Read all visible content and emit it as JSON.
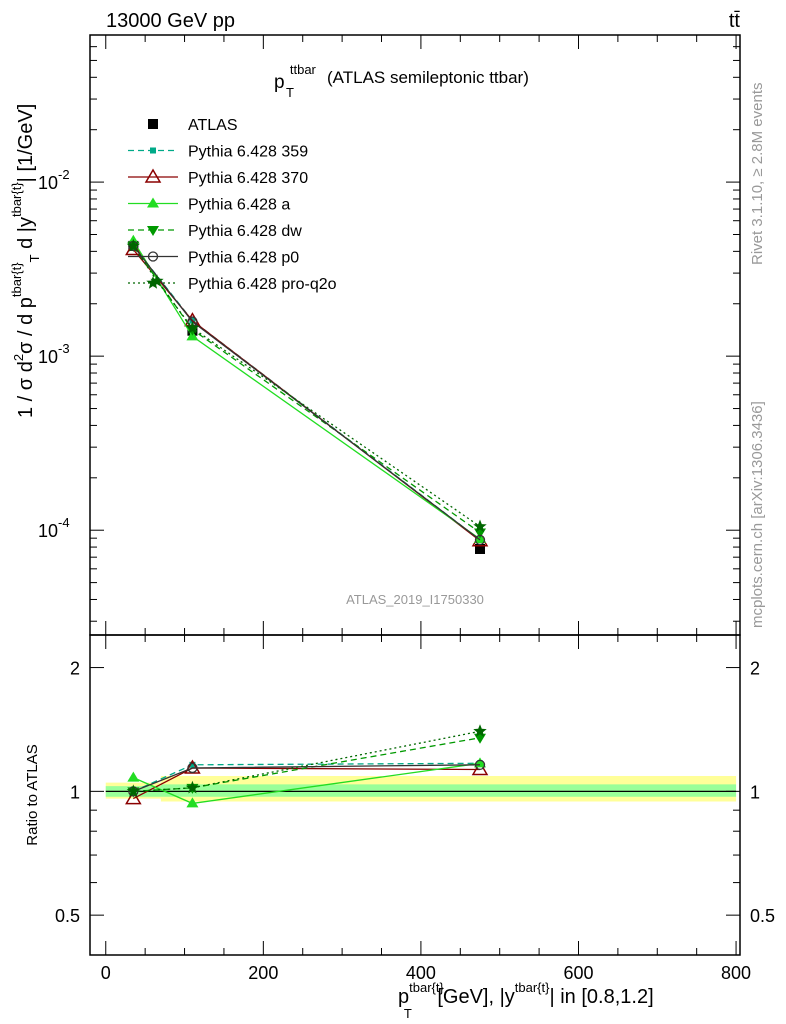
{
  "header": {
    "energy_label": "13000 GeV pp",
    "process_label": "tt̄"
  },
  "side_labels": {
    "rivet": "Rivet 3.1.10, ≥ 2.8M events",
    "source": "mcplots.cern.ch [arXiv:1306.3436]"
  },
  "chart_data": [
    {
      "type": "line",
      "panel": "main",
      "title": "p_T^ttbar (ATLAS semileptonic ttbar)",
      "title_parts": {
        "base": "p",
        "sup": "ttbar",
        "sub": "T",
        "rest": "(ATLAS semileptonic ttbar)"
      },
      "analysis_label": "ATLAS_2019_I1750330",
      "ylabel": "1 / σ d²σ / d p^{tbar{t}}_T d |y^{tbar{t}}| [1/GeV]",
      "ylabel_parts": {
        "a": "1 / σ d",
        "a_sup": "2",
        "b": "σ / d p",
        "b_sup": "tbar{t}",
        "b_sub": "T",
        "c": " d |y",
        "c_sup": "tbar{t}",
        "d": "| [1/GeV]"
      },
      "yscale": "log",
      "ylim": [
        2.5e-05,
        0.07
      ],
      "xlim": [
        -20,
        805
      ],
      "y_tick_labels": [
        {
          "value": 0.01,
          "base": "10",
          "exp": "-2"
        },
        {
          "value": 0.001,
          "base": "10",
          "exp": "-3"
        },
        {
          "value": 0.0001,
          "base": "10",
          "exp": "-4"
        }
      ],
      "legend_placement": "top-left",
      "series": [
        {
          "name": "ATLAS",
          "marker": "square",
          "line": "none",
          "color": "#000000",
          "x": [
            35,
            110,
            475
          ],
          "y": [
            0.0043,
            0.0014,
            7.8e-05
          ]
        },
        {
          "name": "Pythia 6.428 359",
          "marker": "small-square",
          "line": "dashed",
          "color": "#00aa88",
          "x": [
            35,
            110,
            475
          ],
          "y": [
            0.0043,
            0.0016,
            8.8e-05
          ]
        },
        {
          "name": "Pythia 6.428 370",
          "marker": "open-triangle",
          "line": "solid",
          "color": "#8b0000",
          "x": [
            35,
            110,
            475
          ],
          "y": [
            0.0041,
            0.0016,
            8.7e-05
          ]
        },
        {
          "name": "Pythia 6.428 a",
          "marker": "triangle",
          "line": "solid",
          "color": "#22dd22",
          "x": [
            35,
            110,
            475
          ],
          "y": [
            0.0046,
            0.0013,
            8.9e-05
          ]
        },
        {
          "name": "Pythia 6.428 dw",
          "marker": "triangle-down",
          "line": "dashed",
          "color": "#009900",
          "x": [
            35,
            110,
            475
          ],
          "y": [
            0.0043,
            0.00142,
            9.7e-05
          ]
        },
        {
          "name": "Pythia 6.428 p0",
          "marker": "open-circle",
          "line": "solid",
          "color": "#333333",
          "x": [
            35,
            110,
            475
          ],
          "y": [
            0.0043,
            0.00158,
            8.8e-05
          ]
        },
        {
          "name": "Pythia 6.428 pro-q2o",
          "marker": "star",
          "line": "dotted",
          "color": "#006600",
          "x": [
            35,
            65,
            110,
            475
          ],
          "y": [
            0.0043,
            0.0027,
            0.00145,
            0.000105
          ]
        }
      ]
    },
    {
      "type": "line",
      "panel": "ratio",
      "ylabel": "Ratio to ATLAS",
      "yscale": "log",
      "ylim": [
        0.4,
        2.4
      ],
      "xlim": [
        -20,
        805
      ],
      "xlabel": "p^{tbar{t}}_T [GeV], |y^{tbar{t}}| in [0.8,1.2]",
      "xlabel_parts": {
        "a": "p",
        "a_sup": "tbar{t}",
        "a_sub": "T",
        "b": " [GeV], |y",
        "b_sup": "tbar{t}",
        "c": "| in [0.8,1.2]"
      },
      "x_tick_labels": [
        "0",
        "200",
        "400",
        "600",
        "800"
      ],
      "x_ticks": [
        0,
        200,
        400,
        600,
        800
      ],
      "y_tick_labels": [
        "0.5",
        "1",
        "2"
      ],
      "y_ticks": [
        0.5,
        1,
        2
      ],
      "bands": [
        {
          "name": "total uncertainty",
          "color": "#ffff99",
          "x_edges": [
            0,
            70,
            800
          ],
          "lo": [
            0.96,
            0.945,
            0.945
          ],
          "hi": [
            1.05,
            1.09,
            1.09
          ]
        },
        {
          "name": "stat uncertainty",
          "color": "#99ff99",
          "x_edges": [
            0,
            70,
            800
          ],
          "lo": [
            0.97,
            0.97,
            0.97
          ],
          "hi": [
            1.03,
            1.04,
            1.04
          ]
        }
      ],
      "reference_line": 1,
      "series": [
        {
          "name": "Pythia 6.428 359",
          "x": [
            35,
            110,
            475
          ],
          "y": [
            1.0,
            1.16,
            1.17
          ]
        },
        {
          "name": "Pythia 6.428 370",
          "x": [
            35,
            110,
            475
          ],
          "y": [
            0.96,
            1.14,
            1.13
          ]
        },
        {
          "name": "Pythia 6.428 a",
          "x": [
            35,
            110,
            475
          ],
          "y": [
            1.08,
            0.935,
            1.17
          ]
        },
        {
          "name": "Pythia 6.428 dw",
          "x": [
            35,
            110,
            475
          ],
          "y": [
            1.0,
            1.02,
            1.35
          ]
        },
        {
          "name": "Pythia 6.428 p0",
          "x": [
            35,
            110,
            475
          ],
          "y": [
            1.0,
            1.14,
            1.16
          ]
        },
        {
          "name": "Pythia 6.428 pro-q2o",
          "x": [
            35,
            110,
            475
          ],
          "y": [
            1.0,
            1.02,
            1.4
          ]
        }
      ]
    }
  ]
}
